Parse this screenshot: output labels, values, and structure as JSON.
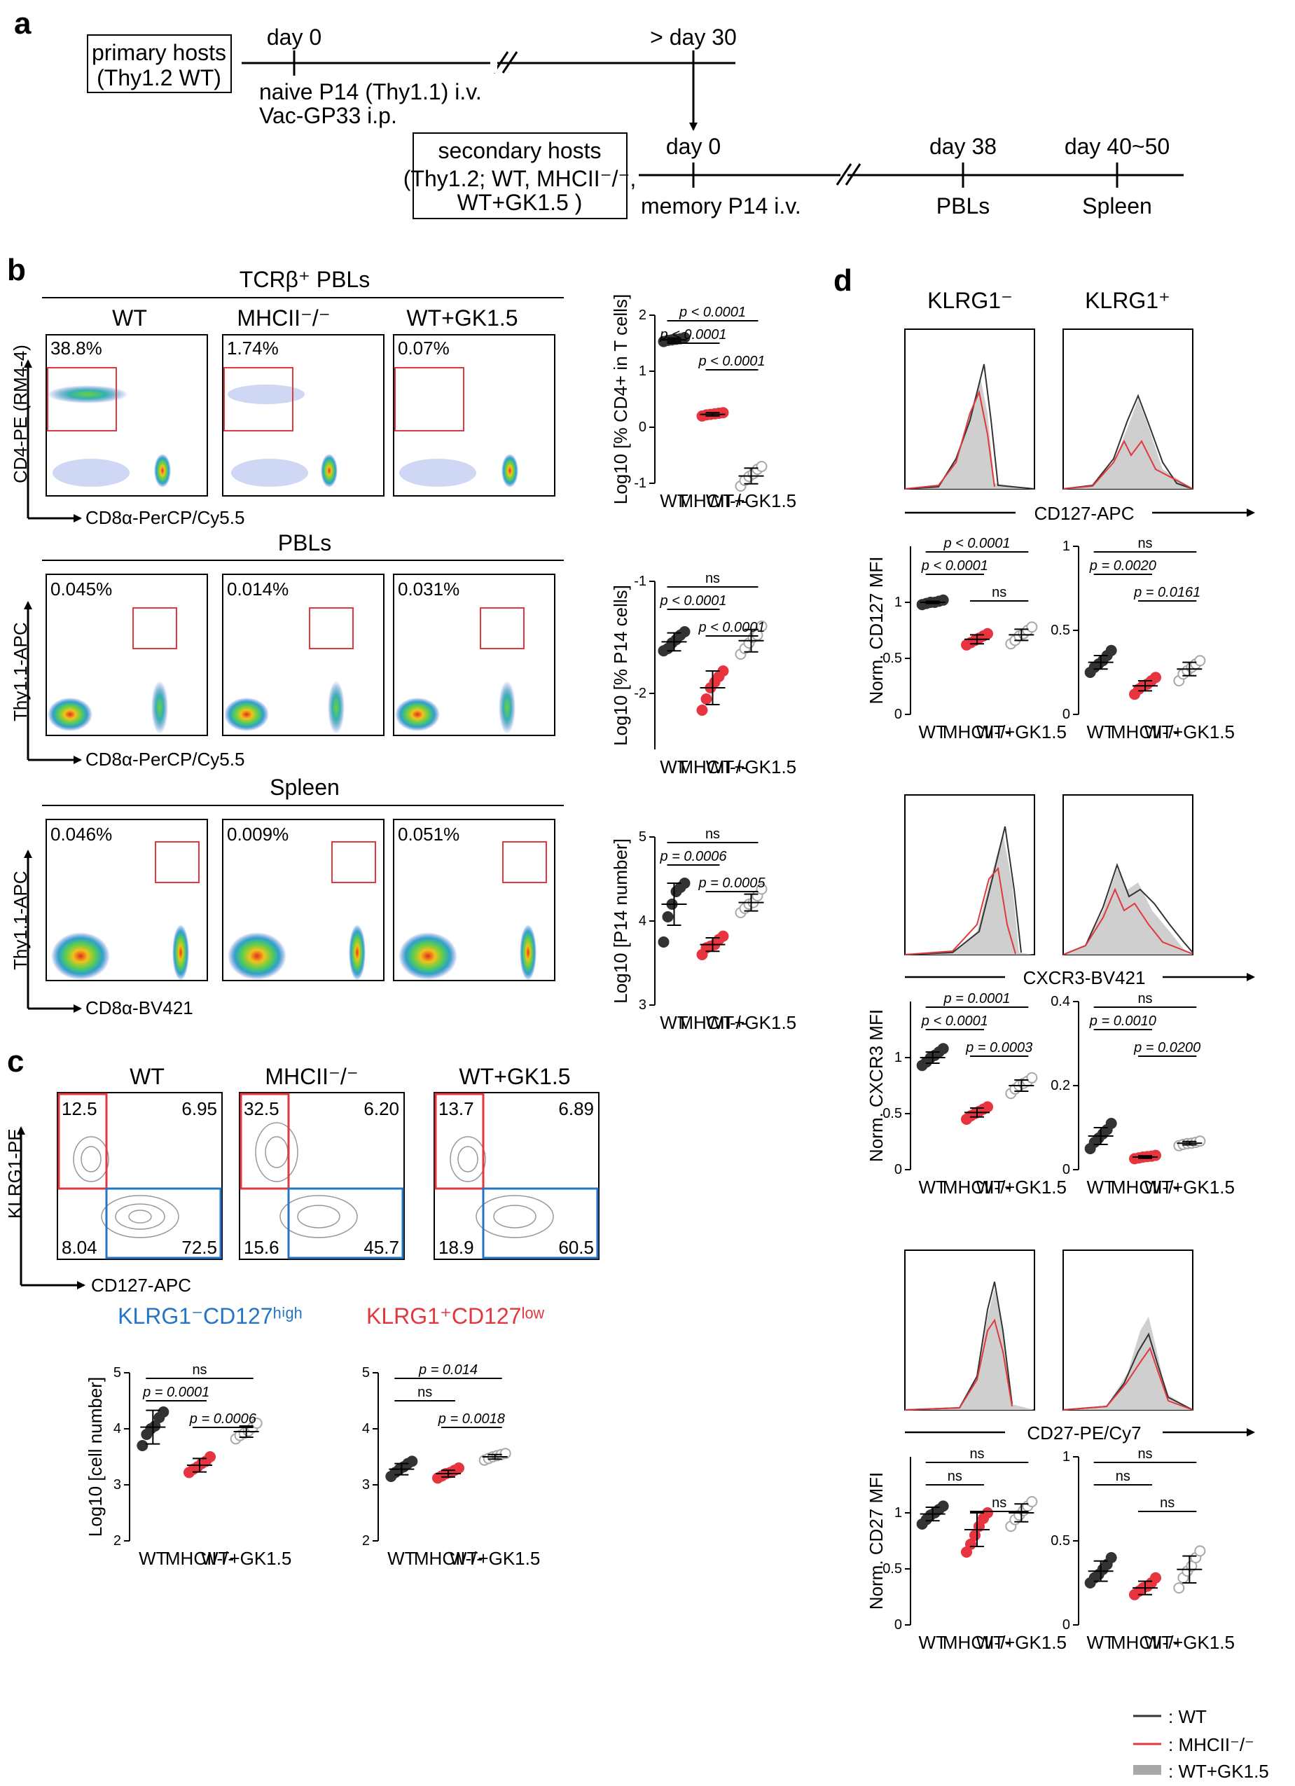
{
  "panel_labels": {
    "a": "a",
    "b": "b",
    "c": "c",
    "d": "d"
  },
  "colors": {
    "wt": "#333333",
    "mhc": "#e8343f",
    "gk": "#a8a8a8",
    "gate_red": "#e0383e",
    "gate_blue": "#2476c4"
  },
  "panel_a": {
    "primary_hosts_l1": "primary hosts",
    "primary_hosts_l2": "(Thy1.2 WT)",
    "day0": "day 0",
    "day30": "> day 30",
    "naive_l1": "naive P14 (Thy1.1) i.v.",
    "naive_l2": "Vac-GP33 i.p.",
    "secondary_l1": "secondary hosts",
    "secondary_l2": "(Thy1.2; WT, MHCII⁻/⁻,",
    "secondary_l3": "WT+GK1.5 )",
    "day0b": "day 0",
    "memory": "memory P14 i.v.",
    "day38": "day 38",
    "pbls": "PBLs",
    "day4050": "day 40~50",
    "spleen": "Spleen"
  },
  "panel_b": {
    "conditions": [
      "WT",
      "MHCII⁻/⁻",
      "WT+GK1.5"
    ],
    "row1": {
      "title": "TCRβ⁺ PBLs",
      "ylabel": "CD4-PE (RM4-4)",
      "xlabel": "CD8α-PerCP/Cy5.5",
      "percents": [
        "38.8%",
        "1.74%",
        "0.07%"
      ]
    },
    "row2": {
      "title": "PBLs",
      "ylabel": "Thy1.1-APC",
      "xlabel": "CD8α-PerCP/Cy5.5",
      "percents": [
        "0.045%",
        "0.014%",
        "0.031%"
      ]
    },
    "row3": {
      "title": "Spleen",
      "ylabel": "Thy1.1-APC",
      "xlabel": "CD8α-BV421",
      "percents": [
        "0.046%",
        "0.009%",
        "0.051%"
      ]
    }
  },
  "panel_c": {
    "conditions": [
      "WT",
      "MHCII⁻/⁻",
      "WT+GK1.5"
    ],
    "ylabel": "KLRG1-PE",
    "xlabel": "CD127-APC",
    "quadrants": [
      {
        "ul": "12.5",
        "ur": "6.95",
        "ll": "8.04",
        "lr": "72.5"
      },
      {
        "ul": "32.5",
        "ur": "6.20",
        "ll": "15.6",
        "lr": "45.7"
      },
      {
        "ul": "13.7",
        "ur": "6.89",
        "ll": "18.9",
        "lr": "60.5"
      }
    ],
    "title_left": "KLRG1⁻CD127ʰⁱᵍʰ",
    "title_right": "KLRG1⁺CD127ˡᵒʷ"
  },
  "panel_d": {
    "col_titles": [
      "KLRG1⁻",
      "KLRG1⁺"
    ],
    "hist_labels": [
      "CD127-APC",
      "CXCR3-BV421",
      "CD27-PE/Cy7"
    ],
    "legend": [
      ": WT",
      ": MHCII⁻/⁻",
      ": WT+GK1.5"
    ]
  },
  "chart_data": [
    {
      "type": "scatter",
      "id": "b1",
      "ylabel": "Log10 [% CD4+ in T cells]",
      "categories": [
        "WT",
        "MHCII-/-",
        "WT+GK1.5"
      ],
      "ylim": [
        -1,
        2
      ],
      "yticks": [
        -1,
        0,
        1,
        2
      ],
      "series": [
        {
          "name": "WT",
          "values": [
            1.53,
            1.55,
            1.56,
            1.57,
            1.58,
            1.6
          ],
          "mean": 1.56,
          "sd": 0.03
        },
        {
          "name": "MHCII-/-",
          "values": [
            0.2,
            0.22,
            0.23,
            0.24,
            0.25,
            0.26
          ],
          "mean": 0.23,
          "sd": 0.03
        },
        {
          "name": "WT+GK1.5",
          "values": [
            -1.05,
            -0.95,
            -0.88,
            -0.83,
            -0.75,
            -0.7
          ],
          "mean": -0.87,
          "sd": 0.14
        }
      ],
      "annotations": [
        {
          "from": 0,
          "to": 2,
          "text": "p < 0.0001"
        },
        {
          "from": 0,
          "to": 1,
          "text": "p < 0.0001"
        },
        {
          "from": 1,
          "to": 2,
          "text": "p < 0.0001"
        }
      ]
    },
    {
      "type": "scatter",
      "id": "b2",
      "ylabel": "Log10 [% P14 cells]",
      "categories": [
        "WT",
        "MHCII-/-",
        "WT+GK1.5"
      ],
      "ylim": [
        -2.5,
        -1
      ],
      "yticks": [
        -2,
        -1
      ],
      "series": [
        {
          "name": "WT",
          "values": [
            -1.62,
            -1.6,
            -1.55,
            -1.52,
            -1.48,
            -1.45
          ],
          "mean": -1.54,
          "sd": 0.08
        },
        {
          "name": "MHCII-/-",
          "values": [
            -2.15,
            -2.05,
            -1.95,
            -1.9,
            -1.85,
            -1.8
          ],
          "mean": -1.95,
          "sd": 0.15
        },
        {
          "name": "WT+GK1.5",
          "values": [
            -1.65,
            -1.6,
            -1.55,
            -1.5,
            -1.48,
            -1.4
          ],
          "mean": -1.53,
          "sd": 0.1
        }
      ],
      "annotations": [
        {
          "from": 0,
          "to": 2,
          "text": "ns"
        },
        {
          "from": 0,
          "to": 1,
          "text": "p < 0.0001"
        },
        {
          "from": 1,
          "to": 2,
          "text": "p < 0.0001"
        }
      ]
    },
    {
      "type": "scatter",
      "id": "b3",
      "ylabel": "Log10 [P14 number]",
      "categories": [
        "WT",
        "MHCII-/-",
        "WT+GK1.5"
      ],
      "ylim": [
        3,
        5
      ],
      "yticks": [
        3,
        4,
        5
      ],
      "series": [
        {
          "name": "WT",
          "values": [
            3.75,
            4.05,
            4.2,
            4.35,
            4.4,
            4.45
          ],
          "mean": 4.2,
          "sd": 0.25
        },
        {
          "name": "MHCII-/-",
          "values": [
            3.6,
            3.68,
            3.7,
            3.72,
            3.78,
            3.82
          ],
          "mean": 3.72,
          "sd": 0.08
        },
        {
          "name": "WT+GK1.5",
          "values": [
            4.1,
            4.15,
            4.2,
            4.22,
            4.3,
            4.38
          ],
          "mean": 4.22,
          "sd": 0.1
        }
      ],
      "annotations": [
        {
          "from": 0,
          "to": 2,
          "text": "ns"
        },
        {
          "from": 0,
          "to": 1,
          "text": "p = 0.0006"
        },
        {
          "from": 1,
          "to": 2,
          "text": "p = 0.0005"
        }
      ]
    },
    {
      "type": "scatter",
      "id": "c1",
      "ylabel": "Log10 [cell number]",
      "categories": [
        "WT",
        "MHCII-/-",
        "WT+GK1.5"
      ],
      "ylim": [
        2,
        5
      ],
      "yticks": [
        2,
        3,
        4,
        5
      ],
      "series": [
        {
          "name": "WT",
          "values": [
            3.7,
            3.9,
            4.0,
            4.05,
            4.2,
            4.3
          ],
          "mean": 4.03,
          "sd": 0.3
        },
        {
          "name": "MHCII-/-",
          "values": [
            3.22,
            3.28,
            3.32,
            3.38,
            3.42,
            3.5
          ],
          "mean": 3.35,
          "sd": 0.12
        },
        {
          "name": "WT+GK1.5",
          "values": [
            3.82,
            3.88,
            3.92,
            3.96,
            4.02,
            4.1
          ],
          "mean": 3.95,
          "sd": 0.1
        }
      ],
      "annotations": [
        {
          "from": 0,
          "to": 2,
          "text": "ns"
        },
        {
          "from": 0,
          "to": 1,
          "text": "p = 0.0001"
        },
        {
          "from": 1,
          "to": 2,
          "text": "p = 0.0006"
        }
      ]
    },
    {
      "type": "scatter",
      "id": "c2",
      "ylabel": "",
      "categories": [
        "WT",
        "MHCII-/-",
        "WT+GK1.5"
      ],
      "ylim": [
        2,
        5
      ],
      "yticks": [
        2,
        3,
        4,
        5
      ],
      "series": [
        {
          "name": "WT",
          "values": [
            3.15,
            3.22,
            3.28,
            3.32,
            3.38,
            3.42
          ],
          "mean": 3.28,
          "sd": 0.1
        },
        {
          "name": "MHCII-/-",
          "values": [
            3.12,
            3.16,
            3.2,
            3.22,
            3.26,
            3.3
          ],
          "mean": 3.2,
          "sd": 0.06
        },
        {
          "name": "WT+GK1.5",
          "values": [
            3.44,
            3.47,
            3.5,
            3.52,
            3.54,
            3.56
          ],
          "mean": 3.5,
          "sd": 0.04
        }
      ],
      "annotations": [
        {
          "from": 0,
          "to": 2,
          "text": "p = 0.014"
        },
        {
          "from": 0,
          "to": 1,
          "text": "ns"
        },
        {
          "from": 1,
          "to": 2,
          "text": "p = 0.0018"
        }
      ]
    },
    {
      "type": "scatter",
      "id": "d1",
      "ylabel": "Norm. CD127 MFI",
      "categories": [
        "WT",
        "MHCII-/-",
        "WT+GK1.5"
      ],
      "ylim": [
        0,
        1.5
      ],
      "yticks": [
        0,
        0.5,
        1
      ],
      "series": [
        {
          "name": "WT",
          "values": [
            0.98,
            0.99,
            1.0,
            1.0,
            1.01,
            1.02
          ],
          "mean": 1.0,
          "sd": 0.01
        },
        {
          "name": "MHCII-/-",
          "values": [
            0.62,
            0.64,
            0.66,
            0.68,
            0.7,
            0.72
          ],
          "mean": 0.67,
          "sd": 0.04
        },
        {
          "name": "WT+GK1.5",
          "values": [
            0.63,
            0.66,
            0.7,
            0.72,
            0.75,
            0.78
          ],
          "mean": 0.71,
          "sd": 0.05
        }
      ],
      "annotations": [
        {
          "from": 0,
          "to": 2,
          "text": "p < 0.0001"
        },
        {
          "from": 0,
          "to": 1,
          "text": "p < 0.0001"
        },
        {
          "from": 1,
          "to": 2,
          "text": "ns"
        }
      ]
    },
    {
      "type": "scatter",
      "id": "d2",
      "ylabel": "",
      "categories": [
        "WT",
        "MHCII-/-",
        "WT+GK1.5"
      ],
      "ylim": [
        0,
        1.0
      ],
      "yticks": [
        0,
        0.5,
        1.0
      ],
      "series": [
        {
          "name": "WT",
          "values": [
            0.25,
            0.28,
            0.3,
            0.32,
            0.35,
            0.38
          ],
          "mean": 0.31,
          "sd": 0.04
        },
        {
          "name": "MHCII-/-",
          "values": [
            0.12,
            0.15,
            0.17,
            0.18,
            0.2,
            0.22
          ],
          "mean": 0.17,
          "sd": 0.03
        },
        {
          "name": "WT+GK1.5",
          "values": [
            0.2,
            0.24,
            0.26,
            0.28,
            0.3,
            0.32
          ],
          "mean": 0.27,
          "sd": 0.04
        }
      ],
      "annotations": [
        {
          "from": 0,
          "to": 2,
          "text": "ns"
        },
        {
          "from": 0,
          "to": 1,
          "text": "p = 0.0020"
        },
        {
          "from": 1,
          "to": 2,
          "text": "p = 0.0161"
        }
      ]
    },
    {
      "type": "scatter",
      "id": "d3",
      "ylabel": "Norm. CXCR3 MFI",
      "categories": [
        "WT",
        "MHCII-/-",
        "WT+GK1.5"
      ],
      "ylim": [
        0,
        1.5
      ],
      "yticks": [
        0,
        0.5,
        1
      ],
      "series": [
        {
          "name": "WT",
          "values": [
            0.93,
            0.96,
            1.0,
            1.02,
            1.05,
            1.08
          ],
          "mean": 1.0,
          "sd": 0.05
        },
        {
          "name": "MHCII-/-",
          "values": [
            0.45,
            0.48,
            0.5,
            0.52,
            0.54,
            0.56
          ],
          "mean": 0.51,
          "sd": 0.04
        },
        {
          "name": "WT+GK1.5",
          "values": [
            0.68,
            0.72,
            0.75,
            0.77,
            0.79,
            0.82
          ],
          "mean": 0.75,
          "sd": 0.05
        }
      ],
      "annotations": [
        {
          "from": 0,
          "to": 2,
          "text": "p = 0.0001"
        },
        {
          "from": 0,
          "to": 1,
          "text": "p < 0.0001"
        },
        {
          "from": 1,
          "to": 2,
          "text": "p = 0.0003"
        }
      ]
    },
    {
      "type": "scatter",
      "id": "d4",
      "ylabel": "",
      "categories": [
        "WT",
        "MHCII-/-",
        "WT+GK1.5"
      ],
      "ylim": [
        0,
        0.4
      ],
      "yticks": [
        0,
        0.2,
        0.4
      ],
      "series": [
        {
          "name": "WT",
          "values": [
            0.05,
            0.065,
            0.075,
            0.085,
            0.095,
            0.11
          ],
          "mean": 0.08,
          "sd": 0.02
        },
        {
          "name": "MHCII-/-",
          "values": [
            0.026,
            0.028,
            0.03,
            0.031,
            0.032,
            0.034
          ],
          "mean": 0.03,
          "sd": 0.003
        },
        {
          "name": "WT+GK1.5",
          "values": [
            0.057,
            0.06,
            0.062,
            0.063,
            0.065,
            0.068
          ],
          "mean": 0.063,
          "sd": 0.004
        }
      ],
      "annotations": [
        {
          "from": 0,
          "to": 2,
          "text": "ns"
        },
        {
          "from": 0,
          "to": 1,
          "text": "p = 0.0010"
        },
        {
          "from": 1,
          "to": 2,
          "text": "p = 0.0200"
        }
      ]
    },
    {
      "type": "scatter",
      "id": "d5",
      "ylabel": "Norm. CD27 MFI",
      "categories": [
        "WT",
        "MHCII-/-",
        "WT+GK1.5"
      ],
      "ylim": [
        0,
        1.5
      ],
      "yticks": [
        0,
        0.5,
        1
      ],
      "series": [
        {
          "name": "WT",
          "values": [
            0.9,
            0.94,
            0.98,
            1.0,
            1.03,
            1.06
          ],
          "mean": 0.99,
          "sd": 0.06
        },
        {
          "name": "MHCII-/-",
          "values": [
            0.65,
            0.72,
            0.8,
            0.88,
            0.95,
            1.0
          ],
          "mean": 0.85,
          "sd": 0.15
        },
        {
          "name": "WT+GK1.5",
          "values": [
            0.88,
            0.94,
            0.98,
            1.02,
            1.06,
            1.1
          ],
          "mean": 1.0,
          "sd": 0.08
        }
      ],
      "annotations": [
        {
          "from": 0,
          "to": 2,
          "text": "ns"
        },
        {
          "from": 0,
          "to": 1,
          "text": "ns"
        },
        {
          "from": 1,
          "to": 2,
          "text": "ns"
        }
      ]
    },
    {
      "type": "scatter",
      "id": "d6",
      "ylabel": "",
      "categories": [
        "WT",
        "MHCII-/-",
        "WT+GK1.5"
      ],
      "ylim": [
        0,
        1.0
      ],
      "yticks": [
        0,
        0.5,
        1.0
      ],
      "series": [
        {
          "name": "WT",
          "values": [
            0.25,
            0.28,
            0.3,
            0.33,
            0.36,
            0.4
          ],
          "mean": 0.32,
          "sd": 0.06
        },
        {
          "name": "MHCII-/-",
          "values": [
            0.18,
            0.2,
            0.22,
            0.23,
            0.25,
            0.28
          ],
          "mean": 0.22,
          "sd": 0.04
        },
        {
          "name": "WT+GK1.5",
          "values": [
            0.22,
            0.28,
            0.32,
            0.35,
            0.4,
            0.44
          ],
          "mean": 0.33,
          "sd": 0.08
        }
      ],
      "annotations": [
        {
          "from": 0,
          "to": 2,
          "text": "ns"
        },
        {
          "from": 0,
          "to": 1,
          "text": "ns"
        },
        {
          "from": 1,
          "to": 2,
          "text": "ns"
        }
      ]
    }
  ]
}
